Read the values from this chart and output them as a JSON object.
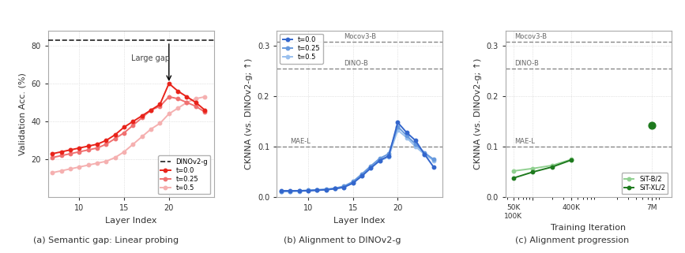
{
  "subplot_a": {
    "xlabel": "Layer Index",
    "ylabel": "Validation Acc. (%)",
    "caption": "(a) Semantic gap: Linear probing",
    "ylim": [
      0,
      88
    ],
    "yticks": [
      20,
      40,
      60,
      80
    ],
    "dino_line": 83,
    "layers": [
      7,
      8,
      9,
      10,
      11,
      12,
      13,
      14,
      15,
      16,
      17,
      18,
      19,
      20,
      21,
      22,
      23,
      24
    ],
    "t00": [
      23,
      24,
      25,
      26,
      27,
      28,
      30,
      33,
      37,
      40,
      43,
      46,
      49,
      60,
      56,
      53,
      50,
      46
    ],
    "t025": [
      21,
      22,
      23,
      24,
      25,
      26,
      28,
      31,
      34,
      38,
      42,
      46,
      48,
      53,
      52,
      50,
      48,
      45
    ],
    "t05": [
      13,
      14,
      15,
      16,
      17,
      18,
      19,
      21,
      24,
      28,
      32,
      36,
      39,
      44,
      47,
      50,
      52,
      53
    ],
    "color_t00": "#e8231a",
    "color_t025": "#f07070",
    "color_t05": "#f5b0b0"
  },
  "subplot_b": {
    "xlabel": "Layer Index",
    "ylabel": "CKNNA (vs. DINOv2-g; ↑)",
    "caption": "(b) Alignment to DINOv2-g",
    "ylim": [
      0,
      0.33
    ],
    "yticks": [
      0.0,
      0.1,
      0.2,
      0.3
    ],
    "mocov3_line": 0.308,
    "dino_b_line": 0.255,
    "mae_l_line": 0.1,
    "layers": [
      7,
      8,
      9,
      10,
      11,
      12,
      13,
      14,
      15,
      16,
      17,
      18,
      19,
      20,
      21,
      22,
      23,
      24
    ],
    "t00": [
      0.013,
      0.013,
      0.013,
      0.013,
      0.014,
      0.015,
      0.017,
      0.02,
      0.028,
      0.042,
      0.058,
      0.073,
      0.082,
      0.148,
      0.128,
      0.112,
      0.085,
      0.06
    ],
    "t025": [
      0.012,
      0.012,
      0.013,
      0.014,
      0.015,
      0.016,
      0.018,
      0.022,
      0.031,
      0.046,
      0.062,
      0.077,
      0.086,
      0.14,
      0.122,
      0.105,
      0.088,
      0.075
    ],
    "t05": [
      0.011,
      0.012,
      0.012,
      0.013,
      0.014,
      0.015,
      0.017,
      0.02,
      0.029,
      0.043,
      0.058,
      0.072,
      0.08,
      0.133,
      0.118,
      0.1,
      0.085,
      0.073
    ],
    "color_t00": "#3366cc",
    "color_t025": "#6699dd",
    "color_t05": "#99c0ee"
  },
  "subplot_c": {
    "xlabel": "Training Iteration",
    "ylabel": "CKNNA (vs. DINOv2-g; ↑)",
    "caption": "(c) Alignment progression",
    "ylim": [
      0,
      0.33
    ],
    "yticks": [
      0.0,
      0.1,
      0.2,
      0.3
    ],
    "mocov3_line": 0.308,
    "dino_b_line": 0.255,
    "mae_l_line": 0.1,
    "iters_connected": [
      50000,
      100000,
      200000,
      400000
    ],
    "sitb_connected": [
      0.052,
      0.057,
      0.063,
      0.075
    ],
    "sitxl_connected": [
      0.038,
      0.05,
      0.06,
      0.074
    ],
    "sitb_7m": 0.143,
    "color_sitb": "#90d090",
    "color_sitxl": "#1e7a1e"
  },
  "figure_bgcolor": "#ffffff"
}
